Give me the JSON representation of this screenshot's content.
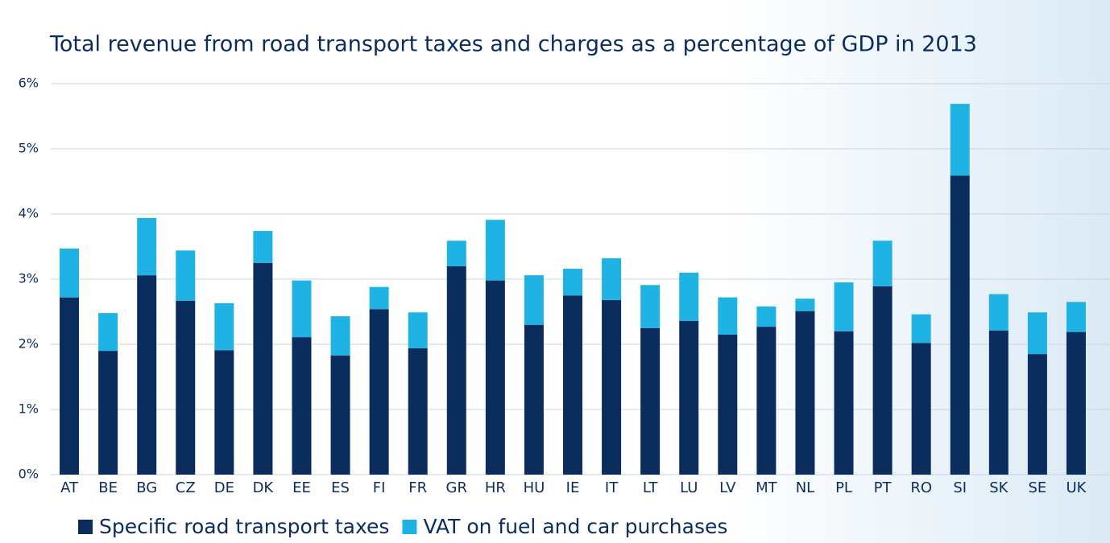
{
  "chart_data": {
    "type": "stacked-bar",
    "title": "Total revenue from road transport taxes and charges as a percentage of GDP in 2013",
    "categories": [
      "AT",
      "BE",
      "BG",
      "CZ",
      "DE",
      "DK",
      "EE",
      "ES",
      "FI",
      "FR",
      "GR",
      "HR",
      "HU",
      "IE",
      "IT",
      "LT",
      "LU",
      "LV",
      "MT",
      "NL",
      "PL",
      "PT",
      "RO",
      "SI",
      "SK",
      "SE",
      "UK"
    ],
    "series": [
      {
        "name": "Specific road transport taxes",
        "color": "#0b2d5e",
        "values": [
          2.72,
          1.9,
          3.06,
          2.67,
          1.91,
          3.25,
          2.11,
          1.83,
          2.54,
          1.94,
          3.2,
          2.98,
          2.3,
          2.75,
          2.68,
          2.25,
          2.36,
          2.15,
          2.27,
          2.51,
          2.2,
          2.89,
          2.02,
          4.59,
          2.21,
          1.85,
          2.19
        ]
      },
      {
        "name": "VAT on fuel and car purchases",
        "color": "#1fb3e5",
        "values": [
          0.75,
          0.58,
          0.88,
          0.77,
          0.72,
          0.49,
          0.87,
          0.6,
          0.34,
          0.55,
          0.39,
          0.93,
          0.76,
          0.41,
          0.64,
          0.66,
          0.74,
          0.57,
          0.31,
          0.19,
          0.75,
          0.7,
          0.44,
          1.1,
          0.56,
          0.64,
          0.46
        ]
      }
    ],
    "ylim": [
      0,
      6
    ],
    "yticks": [
      {
        "value": 0,
        "label": "0%"
      },
      {
        "value": 1,
        "label": "1%"
      },
      {
        "value": 2,
        "label": "2%"
      },
      {
        "value": 3,
        "label": "3%"
      },
      {
        "value": 4,
        "label": "4%"
      },
      {
        "value": 5,
        "label": "5%"
      },
      {
        "value": 6,
        "label": "6%"
      }
    ],
    "grid": true,
    "legend": "bottom-left"
  }
}
